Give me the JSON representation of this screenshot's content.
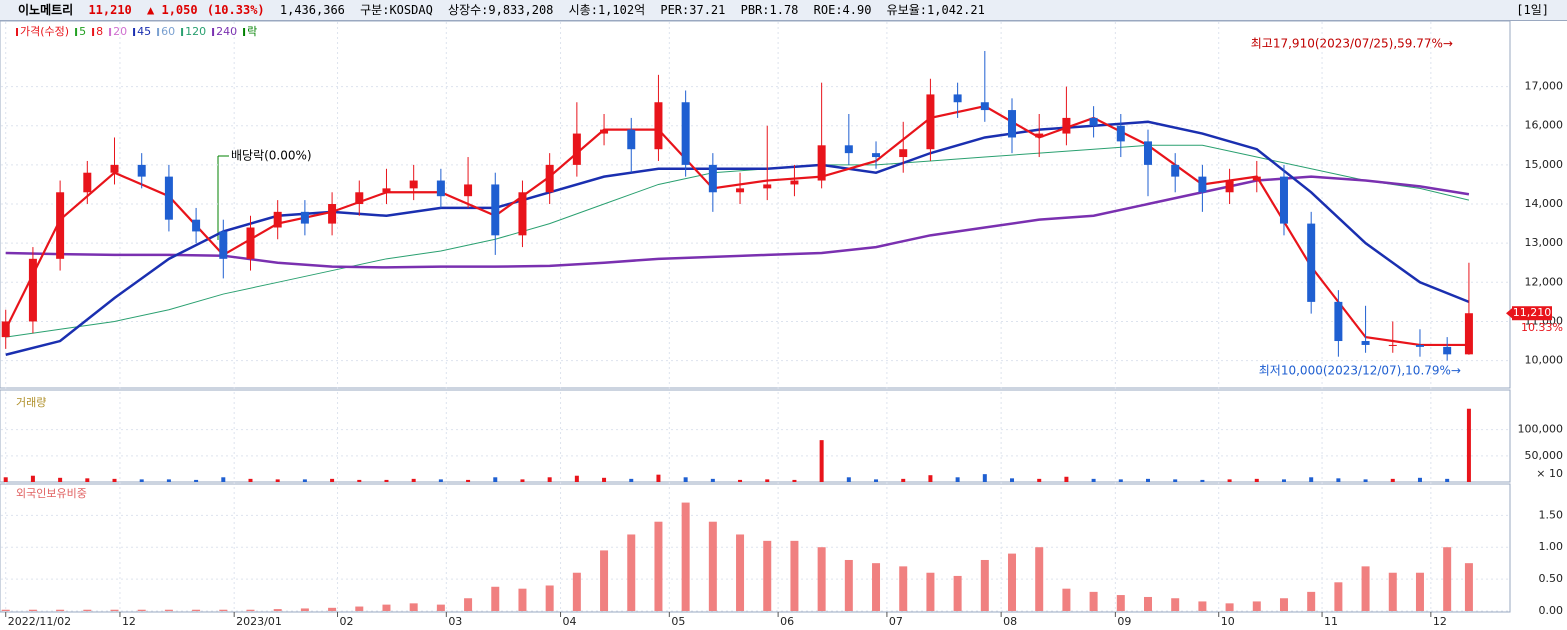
{
  "header": {
    "name": "이노메트리",
    "price": "11,210",
    "change": "▲ 1,050",
    "change_pct": "(10.33%)",
    "volume": "1,436,366",
    "market": "구분:KOSDAQ",
    "shares": "상장수:9,833,208",
    "cap": "시총:1,102억",
    "per": "PER:37.21",
    "pbr": "PBR:1.78",
    "roe": "ROE:4.90",
    "reserve": "유보율:1,042.21",
    "period": "[1일]"
  },
  "chart_data": {
    "type": "candlestick",
    "legend": [
      {
        "label": "가격(수정)",
        "color": "#e8141b"
      },
      {
        "label": "5",
        "color": "#22a022"
      },
      {
        "label": "8",
        "color": "#e8141b"
      },
      {
        "label": "20",
        "color": "#d070d0"
      },
      {
        "label": "45",
        "color": "#1a2fb0"
      },
      {
        "label": "60",
        "color": "#7aa0d0"
      },
      {
        "label": "120",
        "color": "#2aa070"
      },
      {
        "label": "240",
        "color": "#7a30b0"
      },
      {
        "label": "락",
        "color": "#008000"
      }
    ],
    "annotations": {
      "high": "최고17,910(2023/07/25),59.77%→",
      "low": "최저10,000(2023/12/07),10.79%→",
      "dividend": "배당락(0.00%)",
      "last_price": "11,210",
      "last_pct": "10.33%"
    },
    "up_color": "#e8141b",
    "down_color": "#1f5fd1",
    "x": [
      0,
      5,
      10,
      15,
      20,
      25,
      30,
      35,
      40,
      45,
      50,
      55,
      60,
      65,
      70,
      75,
      80,
      85,
      90,
      95,
      100,
      105,
      110,
      115,
      120,
      125,
      130,
      135,
      140,
      145,
      150,
      155,
      160,
      165,
      170,
      175,
      180,
      185,
      190,
      195,
      200,
      205,
      210,
      215,
      220,
      225,
      230,
      235,
      240,
      245,
      250,
      255,
      260,
      265,
      269
    ],
    "open": [
      10600,
      11000,
      12600,
      14300,
      14800,
      15000,
      14700,
      13600,
      13300,
      12600,
      13400,
      13800,
      13500,
      14000,
      14300,
      14400,
      14600,
      14200,
      14500,
      13200,
      14300,
      15000,
      15800,
      15900,
      15400,
      16600,
      15000,
      14300,
      14400,
      14500,
      14600,
      15500,
      15300,
      15200,
      15400,
      16800,
      16600,
      16400,
      15700,
      15800,
      16200,
      16000,
      15600,
      15000,
      14700,
      14300,
      14600,
      14700,
      13500,
      11500,
      10500,
      10400,
      10400,
      10350,
      10160
    ],
    "high": [
      11300,
      12900,
      14600,
      15100,
      15700,
      15300,
      15000,
      13900,
      13600,
      13700,
      14100,
      14100,
      14300,
      14600,
      14900,
      15000,
      14900,
      15200,
      14800,
      14600,
      15300,
      16600,
      16300,
      16200,
      17300,
      16900,
      15300,
      14800,
      16000,
      15000,
      17100,
      16300,
      15600,
      16100,
      17200,
      17100,
      17910,
      16700,
      16300,
      17000,
      16500,
      16300,
      15900,
      15300,
      15000,
      14900,
      15100,
      15000,
      13800,
      11800,
      11400,
      11000,
      10800,
      10600,
      12500
    ],
    "low": [
      10300,
      10700,
      12300,
      14000,
      14500,
      14400,
      13300,
      13000,
      12100,
      12300,
      13100,
      13200,
      13200,
      13700,
      14000,
      14100,
      13900,
      13900,
      12700,
      12900,
      14000,
      14700,
      15500,
      14800,
      15100,
      14700,
      13800,
      14000,
      14100,
      14200,
      14400,
      15000,
      14900,
      14800,
      15100,
      16200,
      16100,
      15300,
      15200,
      15500,
      15700,
      15200,
      14200,
      14300,
      13800,
      14000,
      14300,
      13200,
      11200,
      10100,
      10200,
      10200,
      10100,
      10000,
      10150
    ],
    "close": [
      11000,
      12600,
      14300,
      14800,
      15000,
      14700,
      13600,
      13300,
      12600,
      13400,
      13800,
      13500,
      14000,
      14300,
      14400,
      14600,
      14200,
      14500,
      13200,
      14300,
      15000,
      15800,
      15900,
      15400,
      16600,
      15000,
      14300,
      14400,
      14500,
      14600,
      15500,
      15300,
      15200,
      15400,
      16800,
      16600,
      16400,
      15700,
      15800,
      16200,
      16000,
      15600,
      15000,
      14700,
      14300,
      14600,
      14700,
      13500,
      11500,
      10500,
      10400,
      10400,
      10350,
      10160,
      11210
    ],
    "ma_x": [
      0,
      10,
      20,
      30,
      40,
      50,
      60,
      70,
      80,
      90,
      100,
      110,
      120,
      130,
      140,
      150,
      160,
      170,
      180,
      190,
      200,
      210,
      220,
      230,
      240,
      250,
      260,
      269
    ],
    "ma": [
      {
        "color": "#2aa070",
        "width": 1,
        "values": [
          10600,
          10800,
          11000,
          11300,
          11700,
          12000,
          12300,
          12600,
          12800,
          13100,
          13500,
          14000,
          14500,
          14800,
          14900,
          15000,
          15000,
          15100,
          15200,
          15300,
          15400,
          15500,
          15500,
          15200,
          14900,
          14600,
          14400,
          14100
        ]
      },
      {
        "color": "#7a30b0",
        "width": 2.5,
        "values": [
          12750,
          12720,
          12700,
          12700,
          12680,
          12500,
          12400,
          12380,
          12400,
          12400,
          12420,
          12500,
          12600,
          12650,
          12700,
          12750,
          12900,
          13200,
          13400,
          13600,
          13700,
          14000,
          14300,
          14600,
          14700,
          14600,
          14450,
          14250
        ]
      },
      {
        "color": "#1a2fb0",
        "width": 2.5,
        "values": [
          10150,
          10500,
          11600,
          12600,
          13300,
          13700,
          13800,
          13700,
          13900,
          13900,
          14300,
          14700,
          14900,
          14900,
          14900,
          15000,
          14800,
          15300,
          15700,
          15900,
          16000,
          16100,
          15800,
          15400,
          14300,
          13000,
          12000,
          11500
        ]
      },
      {
        "color": "#e8141b",
        "width": 2.2,
        "values": [
          10800,
          13600,
          14800,
          14200,
          12700,
          13500,
          13800,
          14300,
          14300,
          13700,
          14700,
          15900,
          15900,
          14400,
          14600,
          14700,
          15100,
          16200,
          16500,
          15700,
          16200,
          15500,
          14500,
          14700,
          12400,
          10600,
          10400,
          10400
        ]
      }
    ],
    "xlim": [
      -0.5,
      276
    ],
    "xticks": [
      {
        "value": 0,
        "label": "2022/11/02"
      },
      {
        "value": 21,
        "label": "12"
      },
      {
        "value": 42,
        "label": "2023/01"
      },
      {
        "value": 61,
        "label": "02"
      },
      {
        "value": 81,
        "label": "03"
      },
      {
        "value": 102,
        "label": "04"
      },
      {
        "value": 122,
        "label": "05"
      },
      {
        "value": 142,
        "label": "06"
      },
      {
        "value": 162,
        "label": "07"
      },
      {
        "value": 183,
        "label": "08"
      },
      {
        "value": 204,
        "label": "09"
      },
      {
        "value": 223,
        "label": "10"
      },
      {
        "value": 242,
        "label": "11"
      },
      {
        "value": 262,
        "label": "12"
      }
    ],
    "ylim": [
      9300,
      18650
    ],
    "yticks": [
      {
        "value": 10000,
        "label": "10,000"
      },
      {
        "value": 11000,
        "label": "11,000"
      },
      {
        "value": 12000,
        "label": "12,000"
      },
      {
        "value": 13000,
        "label": "13,000"
      },
      {
        "value": 14000,
        "label": "14,000"
      },
      {
        "value": 15000,
        "label": "15,000"
      },
      {
        "value": 16000,
        "label": "16,000"
      },
      {
        "value": 17000,
        "label": "17,000"
      }
    ],
    "volume": {
      "title": "거래량",
      "unit": "× 10",
      "ylim": [
        0,
        172000
      ],
      "yticks": [
        {
          "value": 50000,
          "label": "50,000"
        },
        {
          "value": 100000,
          "label": "100,000"
        }
      ],
      "values": [
        9000,
        12000,
        8000,
        7000,
        6000,
        5000,
        5000,
        4000,
        9000,
        6000,
        5000,
        5000,
        6000,
        4000,
        4000,
        6000,
        5000,
        4000,
        9000,
        5000,
        9000,
        12000,
        8000,
        6000,
        14000,
        9000,
        6000,
        4000,
        5000,
        4000,
        80000,
        9000,
        5000,
        6000,
        13000,
        9000,
        15000,
        7000,
        6000,
        10000,
        6000,
        5000,
        6000,
        5000,
        4000,
        5000,
        6000,
        5000,
        9000,
        7000,
        5000,
        6000,
        8000,
        6000,
        140000
      ]
    },
    "foreign": {
      "title": "외국인보유비중",
      "color": "#f08080",
      "ylim": [
        0,
        1.96
      ],
      "yticks": [
        {
          "value": 0,
          "label": "0.00"
        },
        {
          "value": 0.5,
          "label": "0.50"
        },
        {
          "value": 1,
          "label": "1.00"
        },
        {
          "value": 1.5,
          "label": "1.50"
        }
      ],
      "values": [
        0.02,
        0.02,
        0.02,
        0.02,
        0.02,
        0.02,
        0.02,
        0.02,
        0.02,
        0.02,
        0.03,
        0.04,
        0.05,
        0.07,
        0.1,
        0.12,
        0.1,
        0.2,
        0.38,
        0.35,
        0.4,
        0.6,
        0.95,
        1.2,
        1.4,
        1.7,
        1.4,
        1.2,
        1.1,
        1.1,
        1.0,
        0.8,
        0.75,
        0.7,
        0.6,
        0.55,
        0.8,
        0.9,
        1.0,
        0.35,
        0.3,
        0.25,
        0.22,
        0.2,
        0.15,
        0.12,
        0.15,
        0.2,
        0.3,
        0.45,
        0.7,
        0.6,
        0.6,
        1.0,
        0.75
      ]
    }
  }
}
